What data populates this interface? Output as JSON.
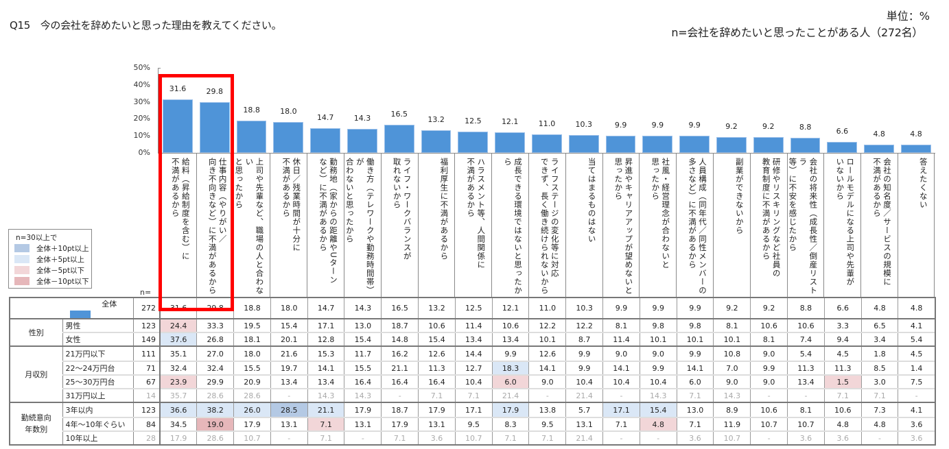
{
  "header": {
    "title": "Q15　今の会社を辞めたいと思った理由を教えてください。",
    "unit": "単位：%",
    "sample": "n=会社を辞めたいと思ったことがある人（272名）"
  },
  "legend": {
    "title": "n=30以上で",
    "items": [
      {
        "label": "全体＋10pt以上",
        "color": "#b4c9e4"
      },
      {
        "label": "全体＋5pt以上",
        "color": "#dae7f6"
      },
      {
        "label": "全体－5pt以下",
        "color": "#f2d6d8"
      },
      {
        "label": "全体－10pt以下",
        "color": "#e6b7ba"
      }
    ]
  },
  "colors": {
    "bar": "#4f94d8",
    "highlight_border": "#ff0000"
  },
  "n_header": "n=",
  "chart_data": {
    "type": "bar",
    "title": "Q15 今の会社を辞めたいと思った理由を教えてください。",
    "xlabel": "",
    "ylabel": "%",
    "ylim": [
      0,
      50
    ],
    "yticks": [
      "0%",
      "10%",
      "20%",
      "30%",
      "40%",
      "50%"
    ],
    "grid": false,
    "legend_position": "left-bottom",
    "categories": [
      "給料（昇給制度を含む）に不満があるから",
      "仕事内容（やりがい／向き不向きなど）に不満があるから",
      "上司や先輩など、職場の人と合わないと思ったから",
      "休日／残業時間が十分に不満があるから",
      "勤務地（家からの距離やUターンなど）に不満があるから",
      "働き方（テレワークや勤務時間帯）が合わないと思ったから",
      "ライフ・ワークバランスが取れないから",
      "福利厚生に不満があるから",
      "ハラスメント等、人間関係に不満があるから",
      "成長できる環境ではないと思ったから",
      "ライフステージの変化等に対応できず、長く働き続けられないから",
      "当てはまるものはない",
      "昇進やキャリアアップが望めないと思ったから",
      "社風・経営理念が合わないと思ったから",
      "人員構成（同年代／同性メンバーの多さなど）に不満があるから",
      "副業ができないから",
      "研修やリスキリングなど社員の教育制度に不満があるから",
      "会社の将来性（成長性／倒産リストラ等）に不安を感じたから",
      "ロールモデルになる上司や先輩がいないから",
      "会社の知名度／サービスの規模に不満があるから",
      "答えたくない"
    ],
    "values": [
      31.6,
      29.8,
      18.8,
      18.0,
      14.7,
      14.3,
      16.5,
      13.2,
      12.5,
      12.1,
      11.0,
      10.3,
      9.9,
      9.9,
      9.9,
      9.2,
      9.2,
      8.8,
      6.6,
      4.8,
      4.8
    ],
    "annotations": [
      "Red box highlights first two categories"
    ]
  },
  "chart": {
    "labels_display": [
      "給料（昇給制度を含む）に\n不満があるから",
      "仕事内容（やりがい／\n向き不向きなど）に不満があるから",
      "上司や先輩など、職場の人と合わない\nと思ったから",
      "休日／残業時間が十分に\n不満があるから",
      "勤務地（家からの距離やUターン\nなど）に不満があるから",
      "働き方（テレワークや勤務時間帯）が\n合わないと思ったから",
      "ライフ・ワークバランスが\n取れないから",
      "福利厚生に不満があるから",
      "ハラスメント等、人間関係に\n不満があるから",
      "成長できる環境ではないと思ったから",
      "ライフステージの変化等に対応\nできず、長く働き続けられないから",
      "当てはまるものはない",
      "昇進やキャリアアップが望めないと\n思ったから",
      "社風・経営理念が合わないと\n思ったから",
      "人員構成（同年代／同性メンバーの\n多さなど）に不満があるから",
      "副業ができないから",
      "研修やリスキリングなど社員の\n教育制度に不満があるから",
      "会社の将来性（成長性／倒産リストラ\n等）に不安を感じたから",
      "ロールモデルになる上司や先輩が\nいないから",
      "会社の知名度／サービスの規模に\n不満があるから",
      "答えたくない"
    ],
    "value_labels": [
      "31.6",
      "29.8",
      "18.8",
      "18.0",
      "14.7",
      "14.3",
      "16.5",
      "13.2",
      "12.5",
      "12.1",
      "11.0",
      "10.3",
      "9.9",
      "9.9",
      "9.9",
      "9.2",
      "9.2",
      "8.8",
      "6.6",
      "4.8",
      "4.8"
    ]
  },
  "table": {
    "rows": [
      {
        "group": "",
        "label": "全体",
        "n": "272",
        "muted": false,
        "values": [
          "31.6",
          "29.8",
          "18.8",
          "18.0",
          "14.7",
          "14.3",
          "16.5",
          "13.2",
          "12.5",
          "12.1",
          "11.0",
          "10.3",
          "9.9",
          "9.9",
          "9.9",
          "9.2",
          "9.2",
          "8.8",
          "6.6",
          "4.8",
          "4.8"
        ],
        "colors": [
          "",
          "",
          "",
          "",
          "",
          "",
          "",
          "",
          "",
          "",
          "",
          "",
          "",
          "",
          "",
          "",
          "",
          "",
          "",
          "",
          ""
        ]
      },
      {
        "group": "性別",
        "label": "男性",
        "n": "123",
        "muted": false,
        "values": [
          "24.4",
          "33.3",
          "19.5",
          "15.4",
          "17.1",
          "13.0",
          "18.7",
          "10.6",
          "11.4",
          "10.6",
          "12.2",
          "12.2",
          "8.1",
          "9.8",
          "9.8",
          "8.1",
          "10.6",
          "10.6",
          "3.3",
          "6.5",
          "4.1"
        ],
        "colors": [
          "m5",
          "",
          "",
          "",
          "",
          "",
          "",
          "",
          "",
          "",
          "",
          "",
          "",
          "",
          "",
          "",
          "",
          "",
          "",
          "",
          ""
        ]
      },
      {
        "group": "性別",
        "label": "女性",
        "n": "149",
        "muted": false,
        "values": [
          "37.6",
          "26.8",
          "18.1",
          "20.1",
          "12.8",
          "15.4",
          "14.8",
          "15.4",
          "13.4",
          "13.4",
          "10.1",
          "8.7",
          "11.4",
          "10.1",
          "10.1",
          "10.1",
          "8.1",
          "7.4",
          "9.4",
          "3.4",
          "5.4"
        ],
        "colors": [
          "p5",
          "",
          "",
          "",
          "",
          "",
          "",
          "",
          "",
          "",
          "",
          "",
          "",
          "",
          "",
          "",
          "",
          "",
          "",
          "",
          ""
        ]
      },
      {
        "group": "月収別",
        "label": "21万円以下",
        "n": "111",
        "muted": false,
        "values": [
          "35.1",
          "27.0",
          "18.0",
          "21.6",
          "15.3",
          "11.7",
          "16.2",
          "12.6",
          "14.4",
          "9.9",
          "12.6",
          "9.9",
          "9.0",
          "9.0",
          "9.9",
          "10.8",
          "9.0",
          "5.4",
          "4.5",
          "1.8",
          "4.5"
        ],
        "colors": [
          "",
          "",
          "",
          "",
          "",
          "",
          "",
          "",
          "",
          "",
          "",
          "",
          "",
          "",
          "",
          "",
          "",
          "",
          "",
          "",
          ""
        ]
      },
      {
        "group": "月収別",
        "label": "22～24万円台",
        "n": "71",
        "muted": false,
        "values": [
          "32.4",
          "32.4",
          "15.5",
          "19.7",
          "14.1",
          "15.5",
          "21.1",
          "11.3",
          "12.7",
          "18.3",
          "14.1",
          "9.9",
          "14.1",
          "9.9",
          "14.1",
          "7.0",
          "9.9",
          "11.3",
          "11.3",
          "8.5",
          "1.4"
        ],
        "colors": [
          "",
          "",
          "",
          "",
          "",
          "",
          "",
          "",
          "",
          "p5",
          "",
          "",
          "",
          "",
          "",
          "",
          "",
          "",
          "",
          "",
          ""
        ]
      },
      {
        "group": "月収別",
        "label": "25～30万円台",
        "n": "67",
        "muted": false,
        "values": [
          "23.9",
          "29.9",
          "20.9",
          "13.4",
          "13.4",
          "16.4",
          "16.4",
          "16.4",
          "10.4",
          "6.0",
          "9.0",
          "10.4",
          "10.4",
          "10.4",
          "6.0",
          "9.0",
          "9.0",
          "13.4",
          "1.5",
          "3.0",
          "7.5"
        ],
        "colors": [
          "m5",
          "",
          "",
          "",
          "",
          "",
          "",
          "",
          "",
          "m5",
          "",
          "",
          "",
          "",
          "",
          "",
          "",
          "",
          "m5",
          "",
          ""
        ]
      },
      {
        "group": "月収別",
        "label": "31万円以上",
        "n": "14",
        "muted": true,
        "values": [
          "35.7",
          "28.6",
          "28.6",
          "-",
          "14.3",
          "14.3",
          "-",
          "7.1",
          "7.1",
          "21.4",
          "-",
          "21.4",
          "-",
          "14.3",
          "7.1",
          "14.3",
          "-",
          "-",
          "7.1",
          "7.1",
          "-"
        ],
        "colors": [
          "",
          "",
          "",
          "",
          "",
          "",
          "",
          "",
          "",
          "",
          "",
          "",
          "",
          "",
          "",
          "",
          "",
          "",
          "",
          "",
          ""
        ]
      },
      {
        "group": "勤続意向\n年数別",
        "label": "3年以内",
        "n": "123",
        "muted": false,
        "values": [
          "36.6",
          "38.2",
          "26.0",
          "28.5",
          "21.1",
          "17.9",
          "18.7",
          "17.9",
          "17.1",
          "17.9",
          "13.8",
          "5.7",
          "17.1",
          "15.4",
          "13.0",
          "8.9",
          "10.6",
          "8.1",
          "10.6",
          "7.3",
          "4.1"
        ],
        "colors": [
          "p5",
          "p5",
          "p5",
          "p10",
          "p5",
          "",
          "",
          "",
          "",
          "p5",
          "",
          "",
          "p5",
          "p5",
          "",
          "",
          "",
          "",
          "",
          "",
          ""
        ]
      },
      {
        "group": "勤続意向\n年数別",
        "label": "4年～10年ぐらい",
        "n": "84",
        "muted": false,
        "values": [
          "34.5",
          "19.0",
          "17.9",
          "13.1",
          "7.1",
          "13.1",
          "17.9",
          "13.1",
          "9.5",
          "8.3",
          "9.5",
          "13.1",
          "7.1",
          "4.8",
          "7.1",
          "11.9",
          "10.7",
          "10.7",
          "4.8",
          "4.8",
          "3.6"
        ],
        "colors": [
          "",
          "m10",
          "",
          "",
          "m5",
          "",
          "",
          "",
          "",
          "",
          "",
          "",
          "",
          "m5",
          "",
          "",
          "",
          "",
          "",
          "",
          ""
        ]
      },
      {
        "group": "勤続意向\n年数別",
        "label": "10年以上",
        "n": "28",
        "muted": true,
        "values": [
          "17.9",
          "28.6",
          "10.7",
          "-",
          "7.1",
          "-",
          "7.1",
          "3.6",
          "10.7",
          "7.1",
          "7.1",
          "21.4",
          "-",
          "-",
          "3.6",
          "10.7",
          "-",
          "3.6",
          "3.6",
          "-",
          "3.6"
        ],
        "colors": [
          "",
          "",
          "",
          "",
          "",
          "",
          "",
          "",
          "",
          "",
          "",
          "",
          "",
          "",
          "",
          "",
          "",
          "",
          "",
          "",
          ""
        ]
      }
    ]
  }
}
